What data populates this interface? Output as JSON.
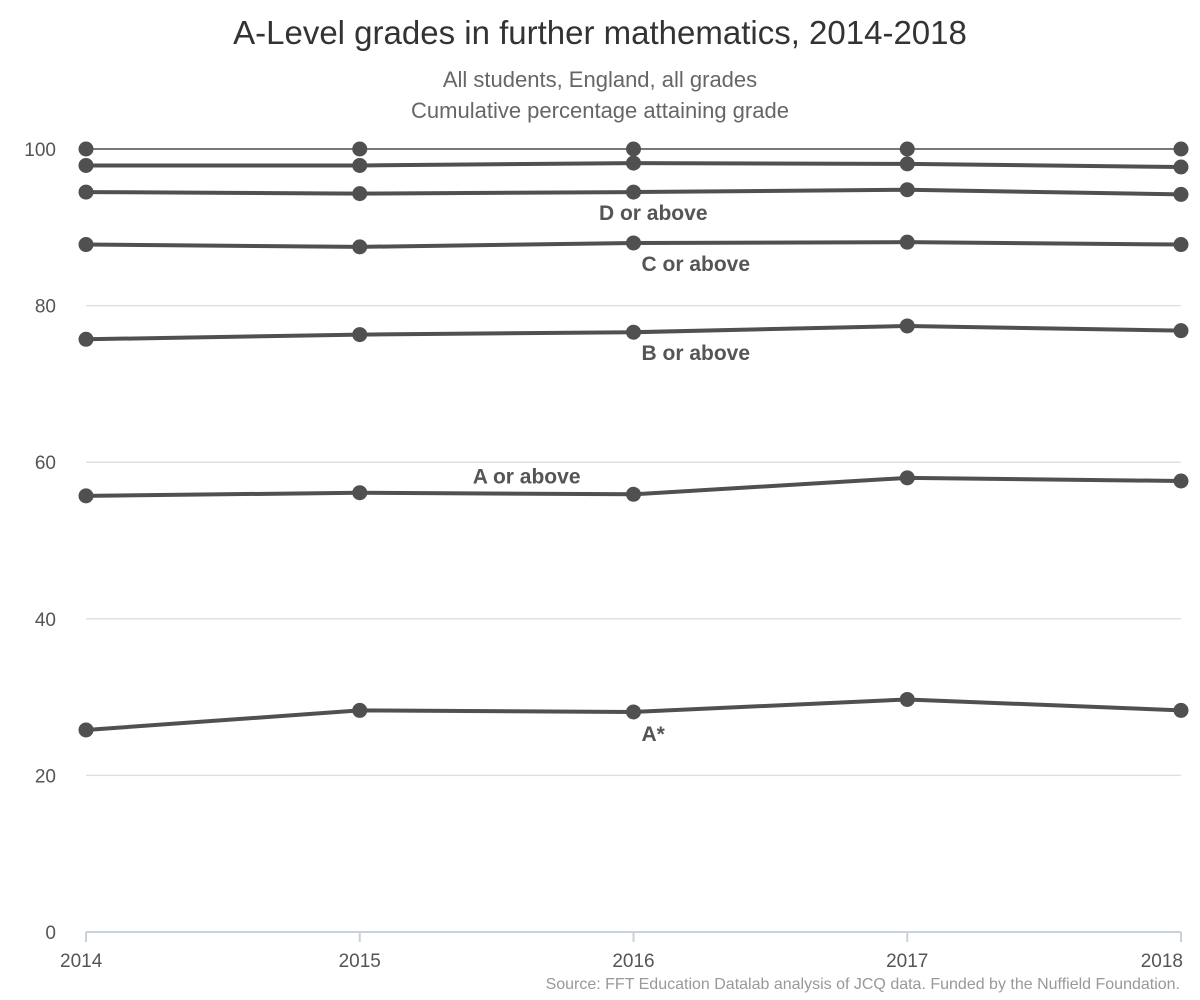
{
  "chart_data": {
    "type": "line",
    "title": "A-Level grades in further mathematics, 2014-2018",
    "subtitle": [
      "All students, England, all grades",
      "Cumulative percentage attaining grade"
    ],
    "x": [
      2014,
      2015,
      2016,
      2017,
      2018
    ],
    "ylim": [
      0,
      100
    ],
    "yticks": [
      0,
      20,
      40,
      60,
      80,
      100
    ],
    "grid": true,
    "series": [
      {
        "name": "",
        "values": [
          100,
          100,
          100,
          100,
          100
        ]
      },
      {
        "name": "",
        "values": [
          97.9,
          97.9,
          98.2,
          98.1,
          97.7
        ]
      },
      {
        "name": "D or above",
        "values": [
          94.5,
          94.3,
          94.5,
          94.8,
          94.2
        ]
      },
      {
        "name": "C or above",
        "values": [
          87.8,
          87.5,
          88.0,
          88.1,
          87.8
        ]
      },
      {
        "name": "B or above",
        "values": [
          75.7,
          76.3,
          76.6,
          77.4,
          76.8
        ]
      },
      {
        "name": "A or above",
        "values": [
          55.7,
          56.1,
          55.9,
          58.0,
          57.6
        ]
      },
      {
        "name": "A*",
        "values": [
          25.8,
          28.3,
          28.1,
          29.7,
          28.3
        ]
      }
    ],
    "line_color": "#505050",
    "source": "Source: FFT Education Datalab analysis of JCQ data. Funded by the Nuffield Foundation."
  }
}
